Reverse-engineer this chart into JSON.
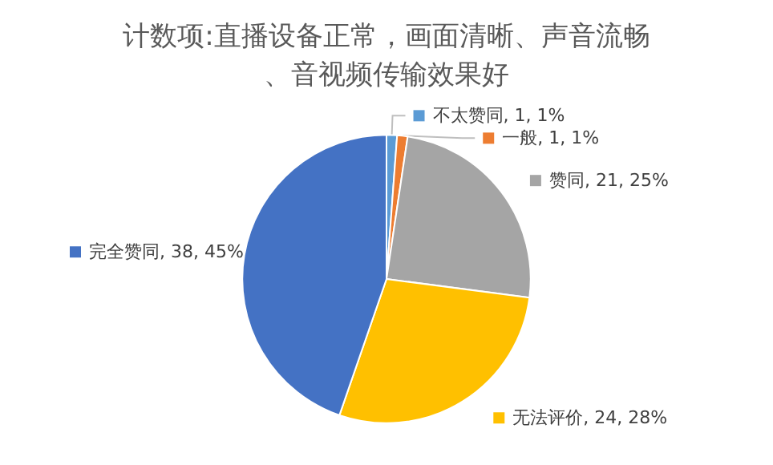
{
  "chart_data": {
    "type": "pie",
    "title": "计数项:直播设备正常，画面清晰、声音流畅、音视频传输效果好",
    "categories": [
      "不太赞同",
      "一般",
      "赞同",
      "无法评价",
      "完全赞同"
    ],
    "values": [
      1,
      1,
      21,
      24,
      38
    ],
    "value_labels": [
      "1, 1%",
      "1, 1%",
      "21, 25%",
      "24, 28%",
      "38, 45%"
    ],
    "colors": [
      "#5b9bd5",
      "#ed7d31",
      "#a5a5a5",
      "#ffc000",
      "#4472c4"
    ],
    "legend": "top left"
  }
}
